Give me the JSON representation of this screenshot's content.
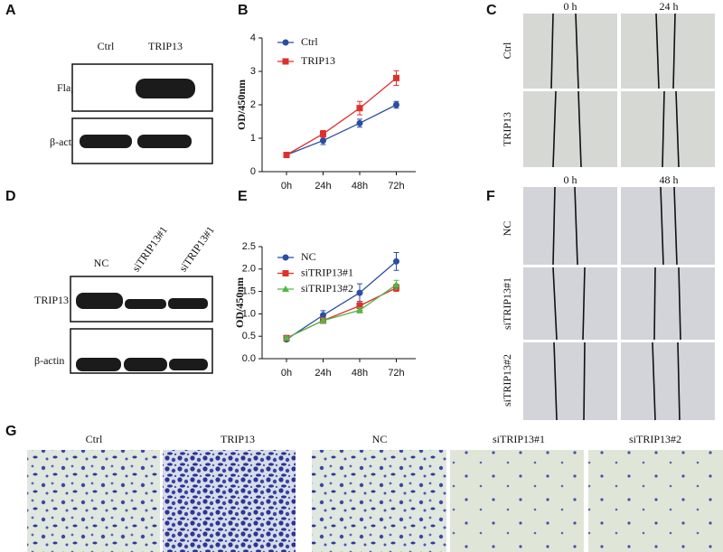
{
  "panel_labels": [
    "A",
    "B",
    "C",
    "D",
    "E",
    "F",
    "G"
  ],
  "blot_a": {
    "columns": [
      "Ctrl",
      "TRIP13"
    ],
    "rows": [
      "Flag",
      "β-actin"
    ]
  },
  "wound_c": {
    "columns": [
      "0 h",
      "24 h"
    ],
    "rows": [
      "Ctrl",
      "TRIP13"
    ]
  },
  "blot_d": {
    "columns": [
      "NC",
      "siTRIP13#1",
      "siTRIP13#1"
    ],
    "rows": [
      "TRIP13",
      "β-actin"
    ]
  },
  "wound_f": {
    "columns": [
      "0 h",
      "48 h"
    ],
    "rows": [
      "NC",
      "siTRIP13#1",
      "siTRIP13#2"
    ]
  },
  "transwell_g": {
    "labels": [
      "Ctrl",
      "TRIP13",
      "NC",
      "siTRIP13#1",
      "siTRIP13#2"
    ]
  },
  "chart_data": [
    {
      "type": "line",
      "y_label": "OD/450nm",
      "categories": [
        "0h",
        "24h",
        "48h",
        "72h"
      ],
      "ylim": [
        0,
        4
      ],
      "yticks": [
        0,
        1,
        2,
        3,
        4
      ],
      "series": [
        {
          "name": "Ctrl",
          "color": "#2a4ea0",
          "marker": "circle",
          "values": [
            0.5,
            0.93,
            1.45,
            2.0
          ],
          "errors": [
            0.05,
            0.12,
            0.12,
            0.1
          ]
        },
        {
          "name": "TRIP13",
          "color": "#e0302c",
          "marker": "square",
          "values": [
            0.5,
            1.13,
            1.9,
            2.8
          ],
          "errors": [
            0.05,
            0.1,
            0.2,
            0.22
          ]
        }
      ]
    },
    {
      "type": "line",
      "y_label": "OD/450nm",
      "categories": [
        "0h",
        "24h",
        "48h",
        "72h"
      ],
      "ylim": [
        0,
        2.5
      ],
      "yticks": [
        {
          "value": 0,
          "label": "0.0"
        },
        {
          "value": 0.5,
          "label": "0.5"
        },
        {
          "value": 1,
          "label": "1.0"
        },
        {
          "value": 1.5,
          "label": "1.5"
        },
        {
          "value": 2,
          "label": "2.0"
        },
        {
          "value": 2.5,
          "label": "2.5"
        }
      ],
      "series": [
        {
          "name": "NC",
          "color": "#2a4ea0",
          "marker": "circle",
          "values": [
            0.43,
            0.97,
            1.47,
            2.17
          ],
          "errors": [
            0.04,
            0.1,
            0.2,
            0.2
          ]
        },
        {
          "name": "siTRIP13#1",
          "color": "#e0302c",
          "marker": "square",
          "values": [
            0.46,
            0.85,
            1.18,
            1.58
          ],
          "errors": [
            0.04,
            0.06,
            0.1,
            0.08
          ]
        },
        {
          "name": "siTRIP13#2",
          "color": "#50b848",
          "marker": "triangle",
          "values": [
            0.46,
            0.85,
            1.08,
            1.65
          ],
          "errors": [
            0.03,
            0.05,
            0.06,
            0.1
          ]
        }
      ]
    }
  ]
}
